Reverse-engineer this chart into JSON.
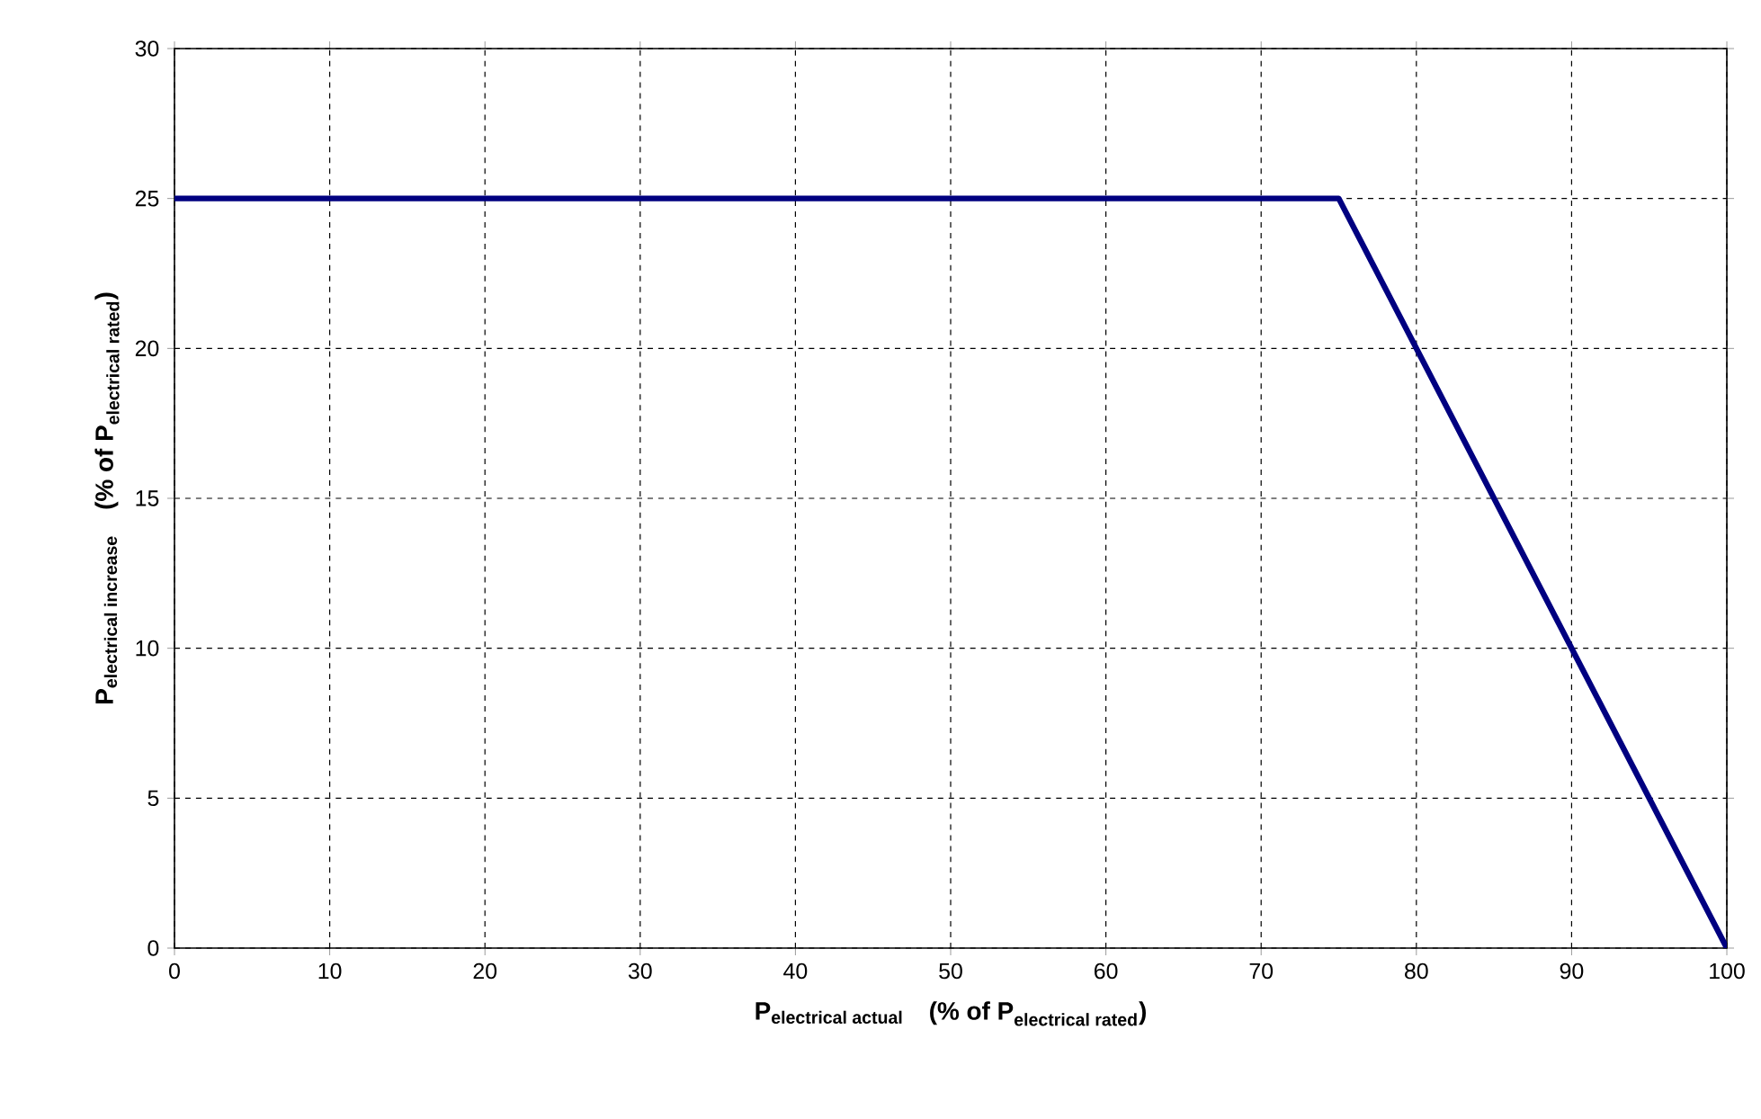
{
  "chart_data": {
    "type": "line",
    "xlabel": "\\text{P}_{\\text{electrical actual}}\\quad\\text{(\\% of P}_{\\text{electrical rated}}\\text{)}",
    "ylabel": "\\text{P}_{\\text{electrical increase}}\\quad\\text{(\\% of P}_{\\text{electrical rated}}\\text{)}",
    "x": [
      0,
      75,
      100
    ],
    "series": [
      {
        "color": "#000080",
        "values": [
          25,
          25,
          0
        ]
      }
    ],
    "xlim": [
      0,
      100
    ],
    "ylim": [
      0,
      30
    ],
    "xticks": [
      0,
      10,
      20,
      30,
      40,
      50,
      60,
      70,
      80,
      90,
      100
    ],
    "yticks": [
      0,
      5,
      10,
      15,
      20,
      25,
      30
    ],
    "grid": true,
    "marker": "none",
    "line_style": "solid"
  }
}
